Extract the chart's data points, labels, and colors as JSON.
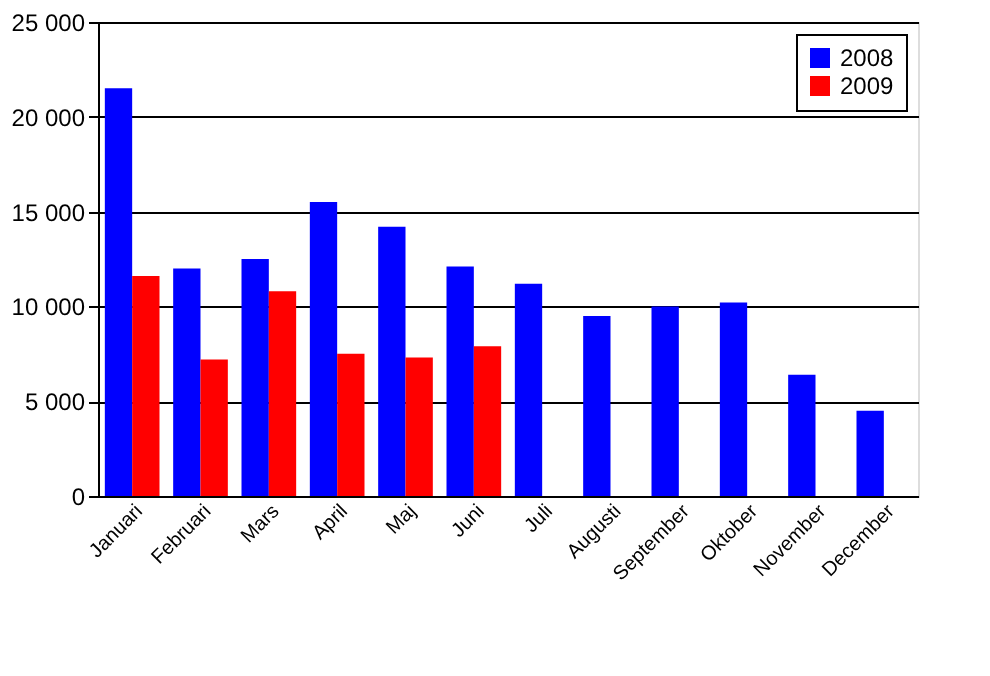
{
  "chart_data": {
    "type": "bar",
    "categories": [
      "Januari",
      "Februari",
      "Mars",
      "April",
      "Maj",
      "Juni",
      "Juli",
      "Augusti",
      "September",
      "Oktober",
      "November",
      "December"
    ],
    "series": [
      {
        "name": "2008",
        "color": "#0000ff",
        "values": [
          21500,
          12000,
          12500,
          15500,
          14200,
          12100,
          11200,
          9500,
          10000,
          10200,
          6400,
          4500
        ]
      },
      {
        "name": "2009",
        "color": "#ff0000",
        "values": [
          11600,
          7200,
          10800,
          7500,
          7300,
          7900,
          null,
          null,
          null,
          null,
          null,
          null
        ]
      }
    ],
    "ylim": [
      0,
      25000
    ],
    "yticks": [
      0,
      {
        "value": 5000,
        "label": "5 000"
      },
      {
        "value": 10000,
        "label": "10 000"
      },
      {
        "value": 15000,
        "label": "15 000"
      },
      {
        "value": 20000,
        "label": "20 000"
      },
      {
        "value": 25000,
        "label": "25 000"
      }
    ],
    "grid": "y",
    "legend": "top right"
  }
}
